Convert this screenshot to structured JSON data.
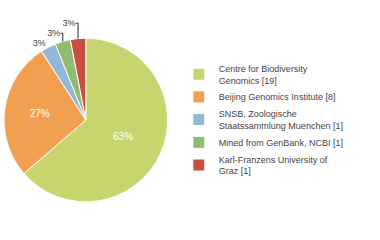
{
  "chart_data": {
    "type": "pie",
    "categories": [
      "Centre for Biodiversity\nGenomics [19]",
      "Beijing Genomics Institute [8]",
      "SNSB, Zoologische\nStaatssammlung Muenchen [1]",
      "Mined from GenBank, NCBI [1]",
      "Karl-Franzens University of\nGraz [1]"
    ],
    "values": [
      63,
      27,
      3,
      3,
      3
    ],
    "value_labels": [
      "63%",
      "27%",
      "3%",
      "3%",
      "3%"
    ],
    "colors": [
      "#c8d46e",
      "#f0a050",
      "#92b8d8",
      "#8fbc6e",
      "#c85040"
    ],
    "data_labels": true,
    "legend": "right"
  }
}
